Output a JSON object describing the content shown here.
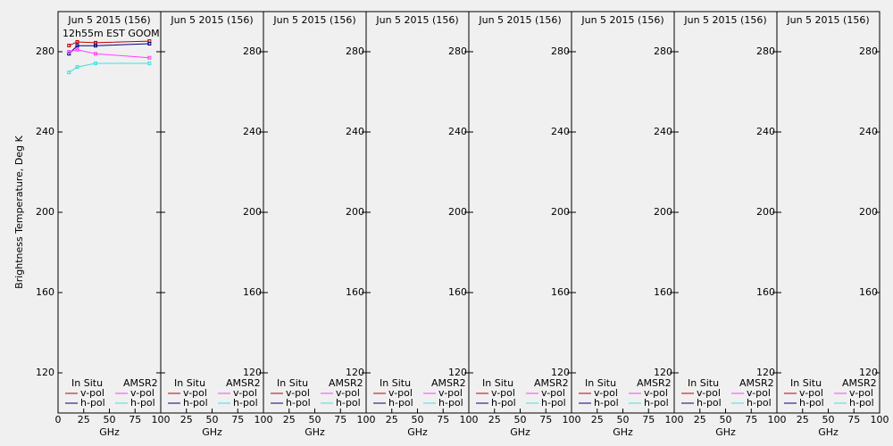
{
  "chart_data": [
    {
      "type": "line",
      "title": "Jun 5 2015 (156)",
      "subtitle": "12h55m EST GOOM",
      "ylabel": "Brightness Temperature, Deg K",
      "xlabel": "GHz",
      "x": [
        10.65,
        18.7,
        36.5,
        89
      ],
      "legend_groups": [
        "In Situ",
        "AMSR2"
      ],
      "series": [
        {
          "name": "v-pol",
          "color": "#c00000",
          "values": [
            283.1,
            284.9,
            284.5,
            285.3
          ]
        },
        {
          "name": "h-pol",
          "color": "#000080",
          "values": [
            279,
            283,
            283,
            284
          ]
        },
        {
          "name": "v-pol",
          "color": "#ff40ff",
          "values": [
            280,
            281,
            279,
            277
          ]
        },
        {
          "name": "h-pol",
          "color": "#40e0e0",
          "values": [
            269.7,
            272.4,
            274.2,
            274.2
          ]
        }
      ],
      "xlim": [
        0,
        100
      ],
      "ylim": [
        100,
        300
      ],
      "xticks": [
        0,
        25,
        50,
        75,
        100
      ],
      "yticks": [
        120,
        160,
        200,
        240,
        280
      ]
    },
    {
      "type": "line",
      "title": "Jun 5 2015 (156)",
      "xlabel": "GHz",
      "x": [],
      "legend_groups": [
        "In Situ",
        "AMSR2"
      ],
      "series": [
        {
          "name": "v-pol",
          "color": "#c00000",
          "values": []
        },
        {
          "name": "h-pol",
          "color": "#000080",
          "values": []
        },
        {
          "name": "v-pol",
          "color": "#ff40ff",
          "values": []
        },
        {
          "name": "h-pol",
          "color": "#40e0e0",
          "values": []
        }
      ],
      "xlim": [
        0,
        100
      ],
      "ylim": [
        100,
        300
      ],
      "xticks": [
        25,
        50,
        75,
        100
      ],
      "yticks": [
        120,
        160,
        200,
        240,
        280
      ]
    },
    {
      "type": "line",
      "title": "Jun 5 2015 (156)",
      "xlabel": "GHz",
      "x": [],
      "legend_groups": [
        "In Situ",
        "AMSR2"
      ],
      "series": [
        {
          "name": "v-pol",
          "color": "#c00000",
          "values": []
        },
        {
          "name": "h-pol",
          "color": "#000080",
          "values": []
        },
        {
          "name": "v-pol",
          "color": "#ff40ff",
          "values": []
        },
        {
          "name": "h-pol",
          "color": "#40e0e0",
          "values": []
        }
      ],
      "xlim": [
        0,
        100
      ],
      "ylim": [
        100,
        300
      ],
      "xticks": [
        25,
        50,
        75,
        100
      ],
      "yticks": [
        120,
        160,
        200,
        240,
        280
      ]
    },
    {
      "type": "line",
      "title": "Jun 5 2015 (156)",
      "xlabel": "GHz",
      "x": [],
      "legend_groups": [
        "In Situ",
        "AMSR2"
      ],
      "series": [
        {
          "name": "v-pol",
          "color": "#c00000",
          "values": []
        },
        {
          "name": "h-pol",
          "color": "#000080",
          "values": []
        },
        {
          "name": "v-pol",
          "color": "#ff40ff",
          "values": []
        },
        {
          "name": "h-pol",
          "color": "#40e0e0",
          "values": []
        }
      ],
      "xlim": [
        0,
        100
      ],
      "ylim": [
        100,
        300
      ],
      "xticks": [
        25,
        50,
        75,
        100
      ],
      "yticks": [
        120,
        160,
        200,
        240,
        280
      ]
    },
    {
      "type": "line",
      "title": "Jun 5 2015 (156)",
      "xlabel": "GHz",
      "x": [],
      "legend_groups": [
        "In Situ",
        "AMSR2"
      ],
      "series": [
        {
          "name": "v-pol",
          "color": "#c00000",
          "values": []
        },
        {
          "name": "h-pol",
          "color": "#000080",
          "values": []
        },
        {
          "name": "v-pol",
          "color": "#ff40ff",
          "values": []
        },
        {
          "name": "h-pol",
          "color": "#40e0e0",
          "values": []
        }
      ],
      "xlim": [
        0,
        100
      ],
      "ylim": [
        100,
        300
      ],
      "xticks": [
        25,
        50,
        75,
        100
      ],
      "yticks": [
        120,
        160,
        200,
        240,
        280
      ]
    },
    {
      "type": "line",
      "title": "Jun 5 2015 (156)",
      "xlabel": "GHz",
      "x": [],
      "legend_groups": [
        "In Situ",
        "AMSR2"
      ],
      "series": [
        {
          "name": "v-pol",
          "color": "#c00000",
          "values": []
        },
        {
          "name": "h-pol",
          "color": "#000080",
          "values": []
        },
        {
          "name": "v-pol",
          "color": "#ff40ff",
          "values": []
        },
        {
          "name": "h-pol",
          "color": "#40e0e0",
          "values": []
        }
      ],
      "xlim": [
        0,
        100
      ],
      "ylim": [
        100,
        300
      ],
      "xticks": [
        25,
        50,
        75,
        100
      ],
      "yticks": [
        120,
        160,
        200,
        240,
        280
      ]
    },
    {
      "type": "line",
      "title": "Jun 5 2015 (156)",
      "xlabel": "GHz",
      "x": [],
      "legend_groups": [
        "In Situ",
        "AMSR2"
      ],
      "series": [
        {
          "name": "v-pol",
          "color": "#c00000",
          "values": []
        },
        {
          "name": "h-pol",
          "color": "#000080",
          "values": []
        },
        {
          "name": "v-pol",
          "color": "#ff40ff",
          "values": []
        },
        {
          "name": "h-pol",
          "color": "#40e0e0",
          "values": []
        }
      ],
      "xlim": [
        0,
        100
      ],
      "ylim": [
        100,
        300
      ],
      "xticks": [
        25,
        50,
        75,
        100
      ],
      "yticks": [
        120,
        160,
        200,
        240,
        280
      ]
    },
    {
      "type": "line",
      "title": "Jun 5 2015 (156)",
      "xlabel": "GHz",
      "x": [],
      "legend_groups": [
        "In Situ",
        "AMSR2"
      ],
      "series": [
        {
          "name": "v-pol",
          "color": "#c00000",
          "values": []
        },
        {
          "name": "h-pol",
          "color": "#000080",
          "values": []
        },
        {
          "name": "v-pol",
          "color": "#ff40ff",
          "values": []
        },
        {
          "name": "h-pol",
          "color": "#40e0e0",
          "values": []
        }
      ],
      "xlim": [
        0,
        100
      ],
      "ylim": [
        100,
        300
      ],
      "xticks": [
        25,
        50,
        75,
        100
      ],
      "yticks": [
        120,
        160,
        200,
        240,
        280
      ]
    }
  ]
}
